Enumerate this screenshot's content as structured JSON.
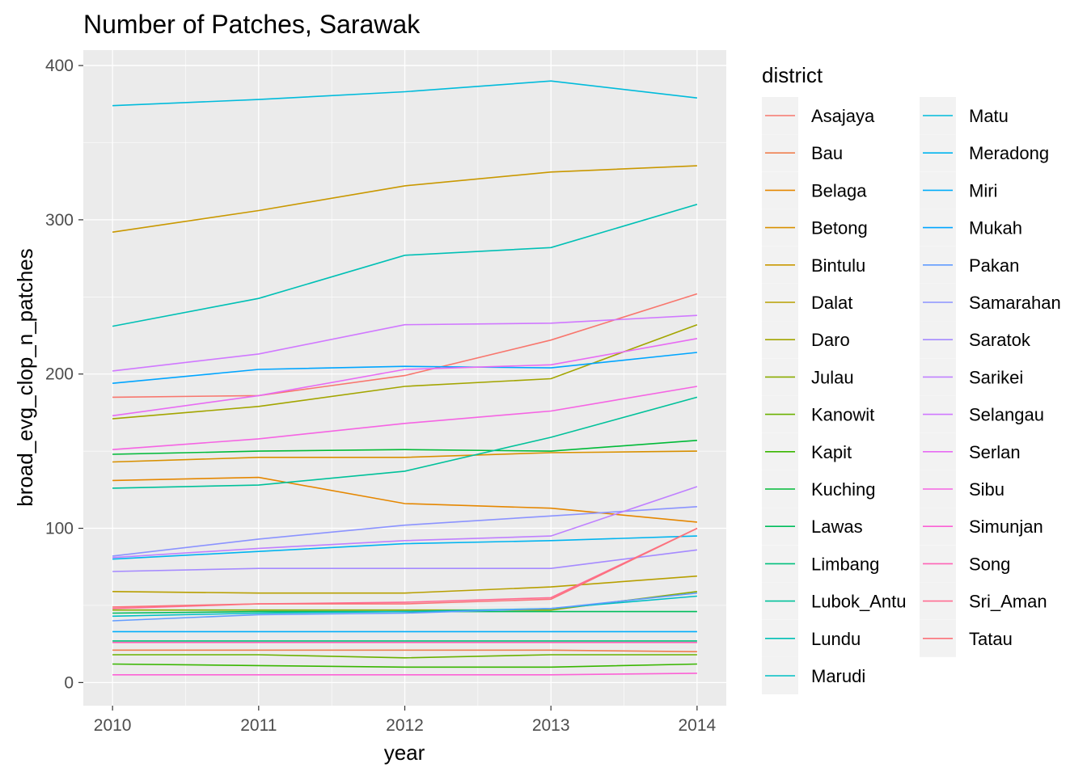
{
  "chart_data": {
    "type": "line",
    "title": "Number of Patches, Sarawak",
    "xlabel": "year",
    "ylabel": "broad_evg_clop_n_patches",
    "x": [
      2010,
      2011,
      2012,
      2013,
      2014
    ],
    "xlim": [
      2009.8,
      2014.2
    ],
    "ylim": [
      -15,
      410
    ],
    "yticks": [
      0,
      100,
      200,
      300,
      400
    ],
    "grid": true,
    "legend": {
      "title": "district",
      "position": "right"
    },
    "series": [
      {
        "name": "Asajaya",
        "color": "#F8766D",
        "values": [
          185,
          186,
          199,
          222,
          252
        ]
      },
      {
        "name": "Bau",
        "color": "#F07F4F",
        "values": [
          21,
          21,
          21,
          21,
          20
        ]
      },
      {
        "name": "Belaga",
        "color": "#E58700",
        "values": [
          131,
          133,
          116,
          113,
          104
        ]
      },
      {
        "name": "Betong",
        "color": "#D89000",
        "values": [
          143,
          146,
          146,
          149,
          150
        ]
      },
      {
        "name": "Bintulu",
        "color": "#C99800",
        "values": [
          292,
          306,
          322,
          331,
          335
        ]
      },
      {
        "name": "Dalat",
        "color": "#B79F00",
        "values": [
          59,
          58,
          58,
          62,
          69
        ]
      },
      {
        "name": "Daro",
        "color": "#A3A500",
        "values": [
          171,
          179,
          192,
          197,
          232
        ]
      },
      {
        "name": "Julau",
        "color": "#8BAB00",
        "values": [
          47,
          47,
          47,
          47,
          59
        ]
      },
      {
        "name": "Kanowit",
        "color": "#6BB100",
        "values": [
          18,
          18,
          16,
          18,
          18
        ]
      },
      {
        "name": "Kapit",
        "color": "#39B600",
        "values": [
          12,
          11,
          10,
          10,
          12
        ]
      },
      {
        "name": "Kuching",
        "color": "#00BA38",
        "values": [
          148,
          150,
          151,
          150,
          157
        ]
      },
      {
        "name": "Lawas",
        "color": "#00BD5C",
        "values": [
          45,
          46,
          46,
          46,
          46
        ]
      },
      {
        "name": "Limbang",
        "color": "#00BF7D",
        "values": [
          27,
          27,
          27,
          27,
          27
        ]
      },
      {
        "name": "Lubok_Antu",
        "color": "#00C19A",
        "values": [
          126,
          128,
          137,
          159,
          185
        ]
      },
      {
        "name": "Lundu",
        "color": "#00C0B5",
        "values": [
          231,
          249,
          277,
          282,
          310
        ]
      },
      {
        "name": "Marudi",
        "color": "#00BFC4",
        "values": [
          43,
          45,
          46,
          48,
          56
        ]
      },
      {
        "name": "Matu",
        "color": "#00BBDB",
        "values": [
          374,
          378,
          383,
          390,
          379
        ]
      },
      {
        "name": "Meradong",
        "color": "#00B4EF",
        "values": [
          80,
          85,
          90,
          92,
          95
        ]
      },
      {
        "name": "Miri",
        "color": "#00ADFA",
        "values": [
          33,
          33,
          33,
          33,
          33
        ]
      },
      {
        "name": "Mukah",
        "color": "#00A5FF",
        "values": [
          194,
          203,
          205,
          204,
          214
        ]
      },
      {
        "name": "Pakan",
        "color": "#619CFF",
        "values": [
          40,
          44,
          45,
          48,
          58
        ]
      },
      {
        "name": "Samarahan",
        "color": "#8B93FF",
        "values": [
          82,
          93,
          102,
          108,
          114
        ]
      },
      {
        "name": "Saratok",
        "color": "#A58AFF",
        "values": [
          72,
          74,
          74,
          74,
          86
        ]
      },
      {
        "name": "Sarikei",
        "color": "#BF80FF",
        "values": [
          81,
          87,
          92,
          95,
          127
        ]
      },
      {
        "name": "Selangau",
        "color": "#D078FF",
        "values": [
          202,
          213,
          232,
          233,
          238
        ]
      },
      {
        "name": "Serlan",
        "color": "#E76BF3",
        "values": [
          173,
          186,
          203,
          206,
          223
        ]
      },
      {
        "name": "Sibu",
        "color": "#F564E3",
        "values": [
          151,
          158,
          168,
          176,
          192
        ]
      },
      {
        "name": "Simunjan",
        "color": "#FC61D5",
        "values": [
          5,
          5,
          5,
          5,
          6
        ]
      },
      {
        "name": "Song",
        "color": "#FF63B6",
        "values": [
          26,
          26,
          26,
          26,
          26
        ]
      },
      {
        "name": "Sri_Aman",
        "color": "#FF6C91",
        "values": [
          48,
          51,
          52,
          55,
          100
        ]
      },
      {
        "name": "Tatau",
        "color": "#FB737A",
        "values": [
          49,
          51,
          51,
          54,
          100
        ]
      }
    ]
  }
}
